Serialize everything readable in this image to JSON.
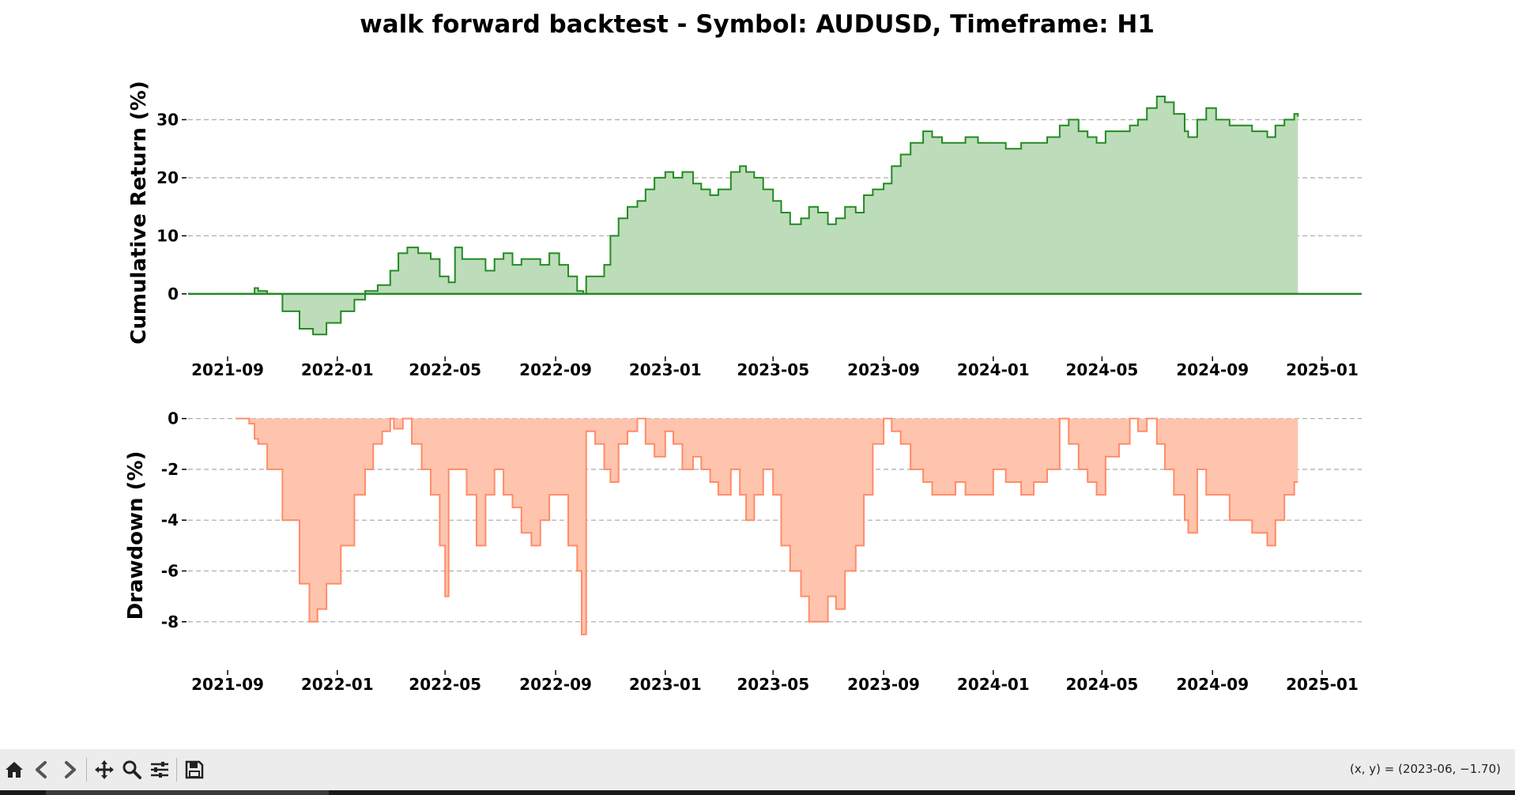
{
  "figure": {
    "title": "walk forward backtest - Symbol: AUDUSD, Timeframe: H1"
  },
  "chart_data": [
    {
      "type": "area",
      "name": "cumulative_return",
      "ylabel": "Cumulative Return (%)",
      "xlabel": "",
      "color": "#228b22",
      "fill_color": "#bddcb9",
      "grid": "horizontal dashed",
      "ylim": [
        -9,
        37
      ],
      "yticks": [
        0,
        10,
        20,
        30
      ],
      "xlim": [
        "2021-07-19",
        "2025-02-14"
      ],
      "xticks": [
        "2021-09",
        "2022-01",
        "2022-05",
        "2022-09",
        "2023-01",
        "2023-05",
        "2023-09",
        "2024-01",
        "2024-05",
        "2024-09",
        "2025-01"
      ],
      "x": [
        "2021-08-20",
        "2021-09-25",
        "2021-10-01",
        "2021-10-05",
        "2021-10-15",
        "2021-11-01",
        "2021-11-20",
        "2021-12-05",
        "2021-12-20",
        "2022-01-05",
        "2022-01-20",
        "2022-02-01",
        "2022-02-15",
        "2022-03-01",
        "2022-03-10",
        "2022-03-20",
        "2022-04-01",
        "2022-04-15",
        "2022-04-25",
        "2022-05-05",
        "2022-05-12",
        "2022-05-20",
        "2022-06-01",
        "2022-06-15",
        "2022-06-25",
        "2022-07-05",
        "2022-07-15",
        "2022-07-25",
        "2022-08-05",
        "2022-08-15",
        "2022-08-25",
        "2022-09-05",
        "2022-09-15",
        "2022-09-25",
        "2022-10-02",
        "2022-10-05",
        "2022-10-15",
        "2022-10-25",
        "2022-11-01",
        "2022-11-10",
        "2022-11-20",
        "2022-12-01",
        "2022-12-10",
        "2022-12-20",
        "2023-01-01",
        "2023-01-10",
        "2023-01-20",
        "2023-02-01",
        "2023-02-10",
        "2023-02-20",
        "2023-03-01",
        "2023-03-15",
        "2023-03-25",
        "2023-04-01",
        "2023-04-10",
        "2023-04-20",
        "2023-05-01",
        "2023-05-10",
        "2023-05-20",
        "2023-06-01",
        "2023-06-10",
        "2023-06-20",
        "2023-07-01",
        "2023-07-10",
        "2023-07-20",
        "2023-08-01",
        "2023-08-10",
        "2023-08-20",
        "2023-09-01",
        "2023-09-10",
        "2023-09-20",
        "2023-10-01",
        "2023-10-15",
        "2023-10-25",
        "2023-11-05",
        "2023-11-20",
        "2023-12-01",
        "2023-12-15",
        "2024-01-01",
        "2024-01-15",
        "2024-02-01",
        "2024-02-15",
        "2024-03-01",
        "2024-03-15",
        "2024-03-25",
        "2024-04-05",
        "2024-04-15",
        "2024-04-25",
        "2024-05-05",
        "2024-05-20",
        "2024-06-01",
        "2024-06-10",
        "2024-06-20",
        "2024-07-01",
        "2024-07-10",
        "2024-07-20",
        "2024-08-01",
        "2024-08-05",
        "2024-08-15",
        "2024-08-25",
        "2024-09-05",
        "2024-09-20",
        "2024-10-01",
        "2024-10-15",
        "2024-11-01",
        "2024-11-10",
        "2024-11-20",
        "2024-12-01",
        "2024-12-05"
      ],
      "values": [
        0,
        0,
        1,
        0.5,
        0,
        -3,
        -6,
        -7,
        -5,
        -3,
        -1,
        0.5,
        1.5,
        4,
        7,
        8,
        7,
        6,
        3,
        2,
        8,
        6,
        6,
        4,
        6,
        7,
        5,
        6,
        6,
        5,
        7,
        5,
        3,
        0.5,
        0,
        3,
        3,
        5,
        10,
        13,
        15,
        16,
        18,
        20,
        21,
        20,
        21,
        19,
        18,
        17,
        18,
        21,
        22,
        21,
        20,
        18,
        16,
        14,
        12,
        13,
        15,
        14,
        12,
        13,
        15,
        14,
        17,
        18,
        19,
        22,
        24,
        26,
        28,
        27,
        26,
        26,
        27,
        26,
        26,
        25,
        26,
        26,
        27,
        29,
        30,
        28,
        27,
        26,
        28,
        28,
        29,
        30,
        32,
        34,
        33,
        31,
        28,
        27,
        30,
        32,
        30,
        29,
        29,
        28,
        27,
        29,
        30,
        31,
        30.5
      ],
      "legend": "none"
    },
    {
      "type": "area",
      "name": "drawdown",
      "ylabel": "Drawdown (%)",
      "xlabel": "",
      "color": "#ff8c69",
      "fill_color": "#ffc4ad",
      "grid": "horizontal dashed",
      "ylim": [
        -9.5,
        0.3
      ],
      "yticks": [
        -8,
        -6,
        -4,
        -2,
        0
      ],
      "xlim": [
        "2021-07-19",
        "2025-02-14"
      ],
      "xticks": [
        "2021-09",
        "2022-01",
        "2022-05",
        "2022-09",
        "2023-01",
        "2023-05",
        "2023-09",
        "2024-01",
        "2024-05",
        "2024-09",
        "2025-01"
      ],
      "x": [
        "2021-09-10",
        "2021-09-25",
        "2021-10-01",
        "2021-10-05",
        "2021-10-15",
        "2021-11-01",
        "2021-11-20",
        "2021-12-01",
        "2021-12-10",
        "2021-12-20",
        "2022-01-05",
        "2022-01-20",
        "2022-02-01",
        "2022-02-10",
        "2022-02-20",
        "2022-03-01",
        "2022-03-05",
        "2022-03-15",
        "2022-03-25",
        "2022-04-05",
        "2022-04-15",
        "2022-04-25",
        "2022-05-01",
        "2022-05-05",
        "2022-05-15",
        "2022-05-25",
        "2022-06-05",
        "2022-06-15",
        "2022-06-25",
        "2022-07-05",
        "2022-07-15",
        "2022-07-25",
        "2022-08-05",
        "2022-08-15",
        "2022-08-25",
        "2022-09-05",
        "2022-09-15",
        "2022-09-25",
        "2022-09-30",
        "2022-10-05",
        "2022-10-15",
        "2022-10-25",
        "2022-11-01",
        "2022-11-10",
        "2022-11-20",
        "2022-12-01",
        "2022-12-10",
        "2022-12-20",
        "2023-01-01",
        "2023-01-10",
        "2023-01-20",
        "2023-02-01",
        "2023-02-10",
        "2023-02-20",
        "2023-03-01",
        "2023-03-15",
        "2023-03-25",
        "2023-04-01",
        "2023-04-10",
        "2023-04-20",
        "2023-05-01",
        "2023-05-10",
        "2023-05-20",
        "2023-06-01",
        "2023-06-10",
        "2023-06-20",
        "2023-07-01",
        "2023-07-10",
        "2023-07-20",
        "2023-08-01",
        "2023-08-10",
        "2023-08-20",
        "2023-09-01",
        "2023-09-10",
        "2023-09-20",
        "2023-10-01",
        "2023-10-15",
        "2023-10-25",
        "2023-11-05",
        "2023-11-20",
        "2023-12-01",
        "2023-12-15",
        "2024-01-01",
        "2024-01-15",
        "2024-02-01",
        "2024-02-15",
        "2024-03-01",
        "2024-03-15",
        "2024-03-25",
        "2024-04-05",
        "2024-04-15",
        "2024-04-25",
        "2024-05-05",
        "2024-05-20",
        "2024-06-01",
        "2024-06-10",
        "2024-06-20",
        "2024-07-01",
        "2024-07-10",
        "2024-07-20",
        "2024-08-01",
        "2024-08-05",
        "2024-08-15",
        "2024-08-25",
        "2024-09-05",
        "2024-09-20",
        "2024-10-01",
        "2024-10-15",
        "2024-11-01",
        "2024-11-10",
        "2024-11-20",
        "2024-12-01",
        "2024-12-05"
      ],
      "values": [
        0,
        -0.2,
        -0.8,
        -1,
        -2,
        -4,
        -6.5,
        -8,
        -7.5,
        -6.5,
        -5,
        -3,
        -2,
        -1,
        -0.5,
        0,
        -0.4,
        0,
        -1,
        -2,
        -3,
        -5,
        -7,
        -2,
        -2,
        -3,
        -5,
        -3,
        -2,
        -3,
        -3.5,
        -4.5,
        -5,
        -4,
        -3,
        -3,
        -5,
        -6,
        -8.5,
        -0.5,
        -1,
        -2,
        -2.5,
        -1,
        -0.5,
        0,
        -1,
        -1.5,
        -0.5,
        -1,
        -2,
        -1.5,
        -2,
        -2.5,
        -3,
        -2,
        -3,
        -4,
        -3,
        -2,
        -3,
        -5,
        -6,
        -7,
        -8,
        -8,
        -7,
        -7.5,
        -6,
        -5,
        -3,
        -1,
        0,
        -0.5,
        -1,
        -2,
        -2.5,
        -3,
        -3,
        -2.5,
        -3,
        -3,
        -2,
        -2.5,
        -3,
        -2.5,
        -2,
        0,
        -1,
        -2,
        -2.5,
        -3,
        -1.5,
        -1,
        0,
        -0.5,
        0,
        -1,
        -2,
        -3,
        -4,
        -4.5,
        -2,
        -3,
        -3,
        -4,
        -4,
        -4.5,
        -5,
        -4,
        -3,
        -2.5,
        -2.5
      ],
      "legend": "none"
    }
  ],
  "toolbar": {
    "buttons": [
      {
        "name": "home-button",
        "icon": "home-icon"
      },
      {
        "name": "back-button",
        "icon": "arrow-left-icon"
      },
      {
        "name": "forward-button",
        "icon": "arrow-right-icon"
      },
      {
        "name": "pan-button",
        "icon": "move-icon"
      },
      {
        "name": "zoom-button",
        "icon": "magnifier-icon"
      },
      {
        "name": "configure-subplots-button",
        "icon": "sliders-icon"
      },
      {
        "name": "save-button",
        "icon": "floppy-disk-icon"
      }
    ],
    "coords": "(x, y) = (2023-06, −1.70)"
  }
}
